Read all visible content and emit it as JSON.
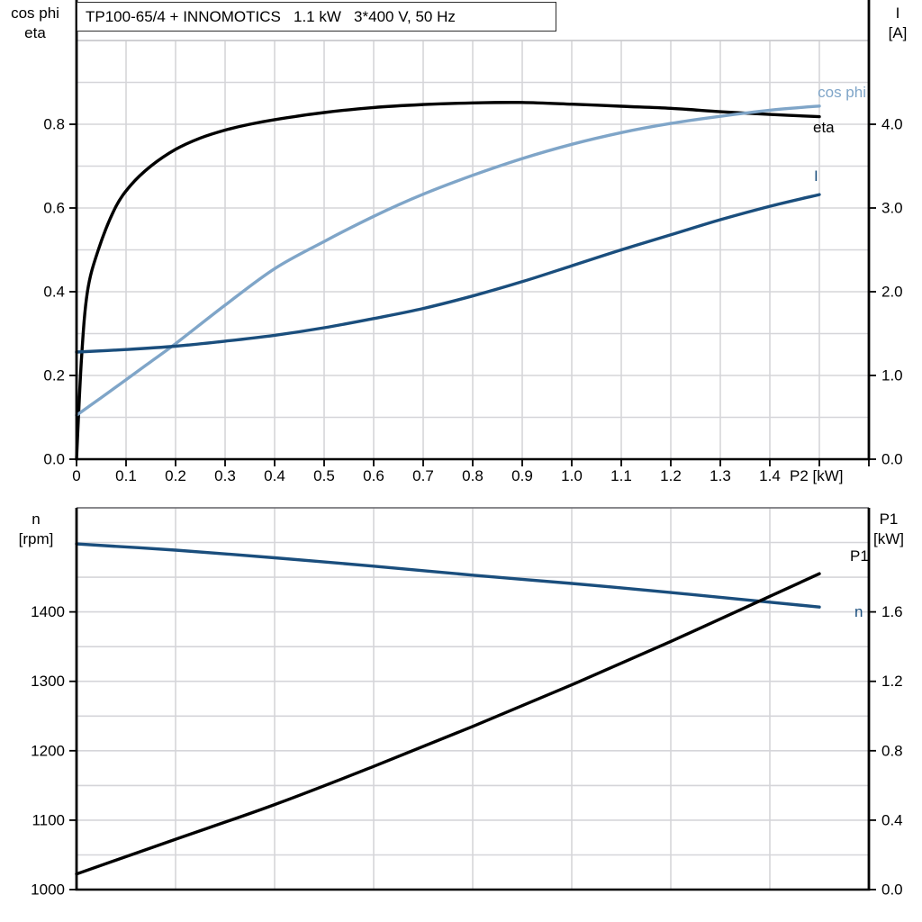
{
  "colors": {
    "black": "#000000",
    "light_blue": "#7FA5C8",
    "dark_blue": "#1A4E7D",
    "grid": "#d5d5d9",
    "top_border_1": "#c9c9cd",
    "top_border_2": "#77777b",
    "axis": "#000000"
  },
  "chart_data": [
    {
      "type": "line",
      "title": "TP100-65/4 + INNOMOTICS   1.1 kW   3*400 V, 50 Hz",
      "xlabel": "P2 [kW]",
      "x_range": [
        0,
        1.6
      ],
      "x_grid_step": 0.1,
      "x_tick_step": 0.1,
      "x_tick_labels": [
        "0",
        "0.1",
        "0.2",
        "0.3",
        "0.4",
        "0.5",
        "0.6",
        "0.7",
        "0.8",
        "0.9",
        "1.0",
        "1.1",
        "1.2",
        "1.3",
        "1.4"
      ],
      "grid": true,
      "left_axis": {
        "title_lines": [
          "cos phi",
          "eta"
        ],
        "range": [
          0,
          1.0
        ],
        "grid_step": 0.1,
        "tick_step": 0.2,
        "tick_labels": [
          "0.0",
          "0.2",
          "0.4",
          "0.6",
          "0.8"
        ]
      },
      "right_axis": {
        "title_lines": [
          "I",
          "[A]"
        ],
        "range": [
          0,
          5.0
        ],
        "tick_step": 1.0,
        "tick_labels": [
          "0.0",
          "1.0",
          "2.0",
          "3.0",
          "4.0"
        ]
      },
      "series": [
        {
          "name": "eta",
          "label": "eta",
          "axis": "left",
          "color": "#000000",
          "points": [
            [
              0,
              0
            ],
            [
              0.01,
              0.24
            ],
            [
              0.022,
              0.4
            ],
            [
              0.044,
              0.5
            ],
            [
              0.078,
              0.6
            ],
            [
              0.11,
              0.655
            ],
            [
              0.15,
              0.7
            ],
            [
              0.2,
              0.74
            ],
            [
              0.25,
              0.767
            ],
            [
              0.3,
              0.786
            ],
            [
              0.35,
              0.8
            ],
            [
              0.4,
              0.811
            ],
            [
              0.5,
              0.828
            ],
            [
              0.6,
              0.84
            ],
            [
              0.7,
              0.847
            ],
            [
              0.8,
              0.851
            ],
            [
              0.9,
              0.852
            ],
            [
              1.0,
              0.848
            ],
            [
              1.1,
              0.843
            ],
            [
              1.2,
              0.838
            ],
            [
              1.3,
              0.83
            ],
            [
              1.4,
              0.8235
            ],
            [
              1.5,
              0.818
            ]
          ]
        },
        {
          "name": "cos phi",
          "label": "cos phi",
          "axis": "left",
          "color": "#7FA5C8",
          "points": [
            [
              0,
              0.105
            ],
            [
              0.05,
              0.147
            ],
            [
              0.1,
              0.19
            ],
            [
              0.15,
              0.233
            ],
            [
              0.2,
              0.276
            ],
            [
              0.3,
              0.368
            ],
            [
              0.4,
              0.455
            ],
            [
              0.5,
              0.52
            ],
            [
              0.6,
              0.58
            ],
            [
              0.7,
              0.633
            ],
            [
              0.8,
              0.678
            ],
            [
              0.9,
              0.718
            ],
            [
              1.0,
              0.752
            ],
            [
              1.1,
              0.78
            ],
            [
              1.2,
              0.802
            ],
            [
              1.3,
              0.819
            ],
            [
              1.4,
              0.8335
            ],
            [
              1.5,
              0.8435
            ]
          ]
        },
        {
          "name": "I",
          "label": "I",
          "axis": "right",
          "color": "#1A4E7D",
          "points": [
            [
              0,
              1.28
            ],
            [
              0.1,
              1.31
            ],
            [
              0.2,
              1.35
            ],
            [
              0.3,
              1.41
            ],
            [
              0.4,
              1.48
            ],
            [
              0.5,
              1.57
            ],
            [
              0.6,
              1.68
            ],
            [
              0.7,
              1.8
            ],
            [
              0.8,
              1.95
            ],
            [
              0.9,
              2.12
            ],
            [
              1.0,
              2.31
            ],
            [
              1.1,
              2.5
            ],
            [
              1.2,
              2.68
            ],
            [
              1.3,
              2.86
            ],
            [
              1.4,
              3.02
            ],
            [
              1.5,
              3.16
            ]
          ]
        }
      ]
    },
    {
      "type": "line",
      "title": "",
      "xlabel": "",
      "x_range": [
        0,
        1.6
      ],
      "x_grid_step": 0.2,
      "x_tick_step": 0.2,
      "x_tick_labels": [],
      "grid": true,
      "left_axis": {
        "title_lines": [
          "n",
          "[rpm]"
        ],
        "range": [
          1000,
          1550
        ],
        "grid_step": 50,
        "tick_step": 100,
        "tick_labels": [
          "1000",
          "1100",
          "1200",
          "1300",
          "1400"
        ]
      },
      "right_axis": {
        "title_lines": [
          "P1",
          "[kW]"
        ],
        "range": [
          0,
          2.2
        ],
        "tick_step": 0.4,
        "tick_labels": [
          "0.0",
          "0.4",
          "0.8",
          "1.2",
          "1.6"
        ]
      },
      "series": [
        {
          "name": "n",
          "label": "n",
          "axis": "left",
          "color": "#1A4E7D",
          "points": [
            [
              0,
              1498
            ],
            [
              0.2,
              1489
            ],
            [
              0.4,
              1478
            ],
            [
              0.6,
              1466
            ],
            [
              0.8,
              1453
            ],
            [
              1.0,
              1441
            ],
            [
              1.2,
              1428
            ],
            [
              1.4,
              1414
            ],
            [
              1.5,
              1407
            ]
          ]
        },
        {
          "name": "P1",
          "label": "P1",
          "axis": "right",
          "color": "#000000",
          "points": [
            [
              0,
              0.09
            ],
            [
              0.2,
              0.29
            ],
            [
              0.4,
              0.49
            ],
            [
              0.6,
              0.71
            ],
            [
              0.8,
              0.94
            ],
            [
              1.0,
              1.18
            ],
            [
              1.2,
              1.43
            ],
            [
              1.4,
              1.69
            ],
            [
              1.5,
              1.82
            ]
          ]
        }
      ]
    }
  ]
}
